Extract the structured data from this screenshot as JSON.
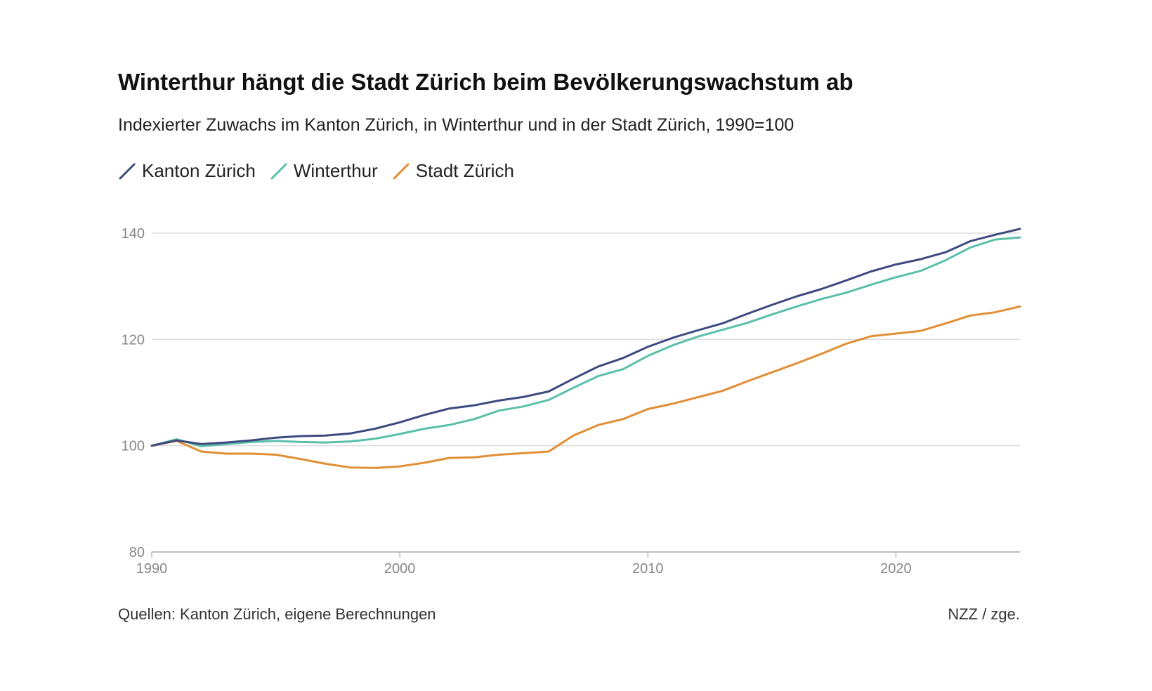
{
  "header": {
    "title": "Winterthur hängt die Stadt Zürich beim Bevölkerungswachstum ab",
    "subtitle": "Indexierter Zuwachs im Kanton Zürich, in Winterthur und in der Stadt Zürich, 1990=100"
  },
  "footer": {
    "source": "Quellen: Kanton Zürich, eigene Berechnungen",
    "credit": "NZZ / zge."
  },
  "chart_data": {
    "type": "line",
    "title": "Winterthur hängt die Stadt Zürich beim Bevölkerungswachstum ab",
    "subtitle": "Indexierter Zuwachs im Kanton Zürich, in Winterthur und in der Stadt Zürich, 1990=100",
    "xlabel": "",
    "ylabel": "",
    "xlim": [
      1990,
      2025
    ],
    "ylim": [
      80,
      140
    ],
    "yticks": [
      80,
      100,
      120,
      140
    ],
    "xticks": [
      1990,
      2000,
      2010,
      2020
    ],
    "grid": true,
    "legend_position": "top-left",
    "x": [
      1990,
      1991,
      1992,
      1993,
      1994,
      1995,
      1996,
      1997,
      1998,
      1999,
      2000,
      2001,
      2002,
      2003,
      2004,
      2005,
      2006,
      2007,
      2008,
      2009,
      2010,
      2011,
      2012,
      2013,
      2014,
      2015,
      2016,
      2017,
      2018,
      2019,
      2020,
      2021,
      2022,
      2023,
      2024,
      2025
    ],
    "series": [
      {
        "name": "Kanton Zürich",
        "color": "#3d4a7f",
        "values": [
          100,
          101.0,
          100.3,
          100.6,
          101.0,
          101.5,
          101.8,
          101.9,
          102.3,
          103.2,
          104.4,
          105.8,
          107.0,
          107.6,
          108.5,
          109.2,
          110.2,
          112.6,
          114.9,
          116.5,
          118.6,
          120.3,
          121.7,
          123.0,
          124.8,
          126.5,
          128.1,
          129.5,
          131.1,
          132.8,
          134.1,
          135.1,
          136.4,
          138.5,
          139.7,
          140.8
        ]
      },
      {
        "name": "Winterthur",
        "color": "#5bbfa9",
        "values": [
          100,
          101.2,
          99.9,
          100.3,
          100.7,
          100.9,
          100.7,
          100.6,
          100.8,
          101.3,
          102.2,
          103.2,
          103.9,
          105.0,
          106.6,
          107.4,
          108.6,
          110.9,
          113.1,
          114.4,
          116.9,
          118.9,
          120.5,
          121.8,
          123.1,
          124.7,
          126.2,
          127.6,
          128.8,
          130.3,
          131.7,
          132.9,
          134.9,
          137.3,
          138.8,
          139.2
        ]
      },
      {
        "name": "Stadt Zürich",
        "color": "#e28e35",
        "values": [
          100,
          100.9,
          98.9,
          98.5,
          98.5,
          98.3,
          97.5,
          96.6,
          95.9,
          95.8,
          96.1,
          96.8,
          97.7,
          97.8,
          98.3,
          98.6,
          98.9,
          101.9,
          103.9,
          105.0,
          106.9,
          107.9,
          109.1,
          110.3,
          112.1,
          113.8,
          115.5,
          117.3,
          119.2,
          120.6,
          121.1,
          121.6,
          123.0,
          124.5,
          125.1,
          126.2
        ]
      }
    ]
  }
}
